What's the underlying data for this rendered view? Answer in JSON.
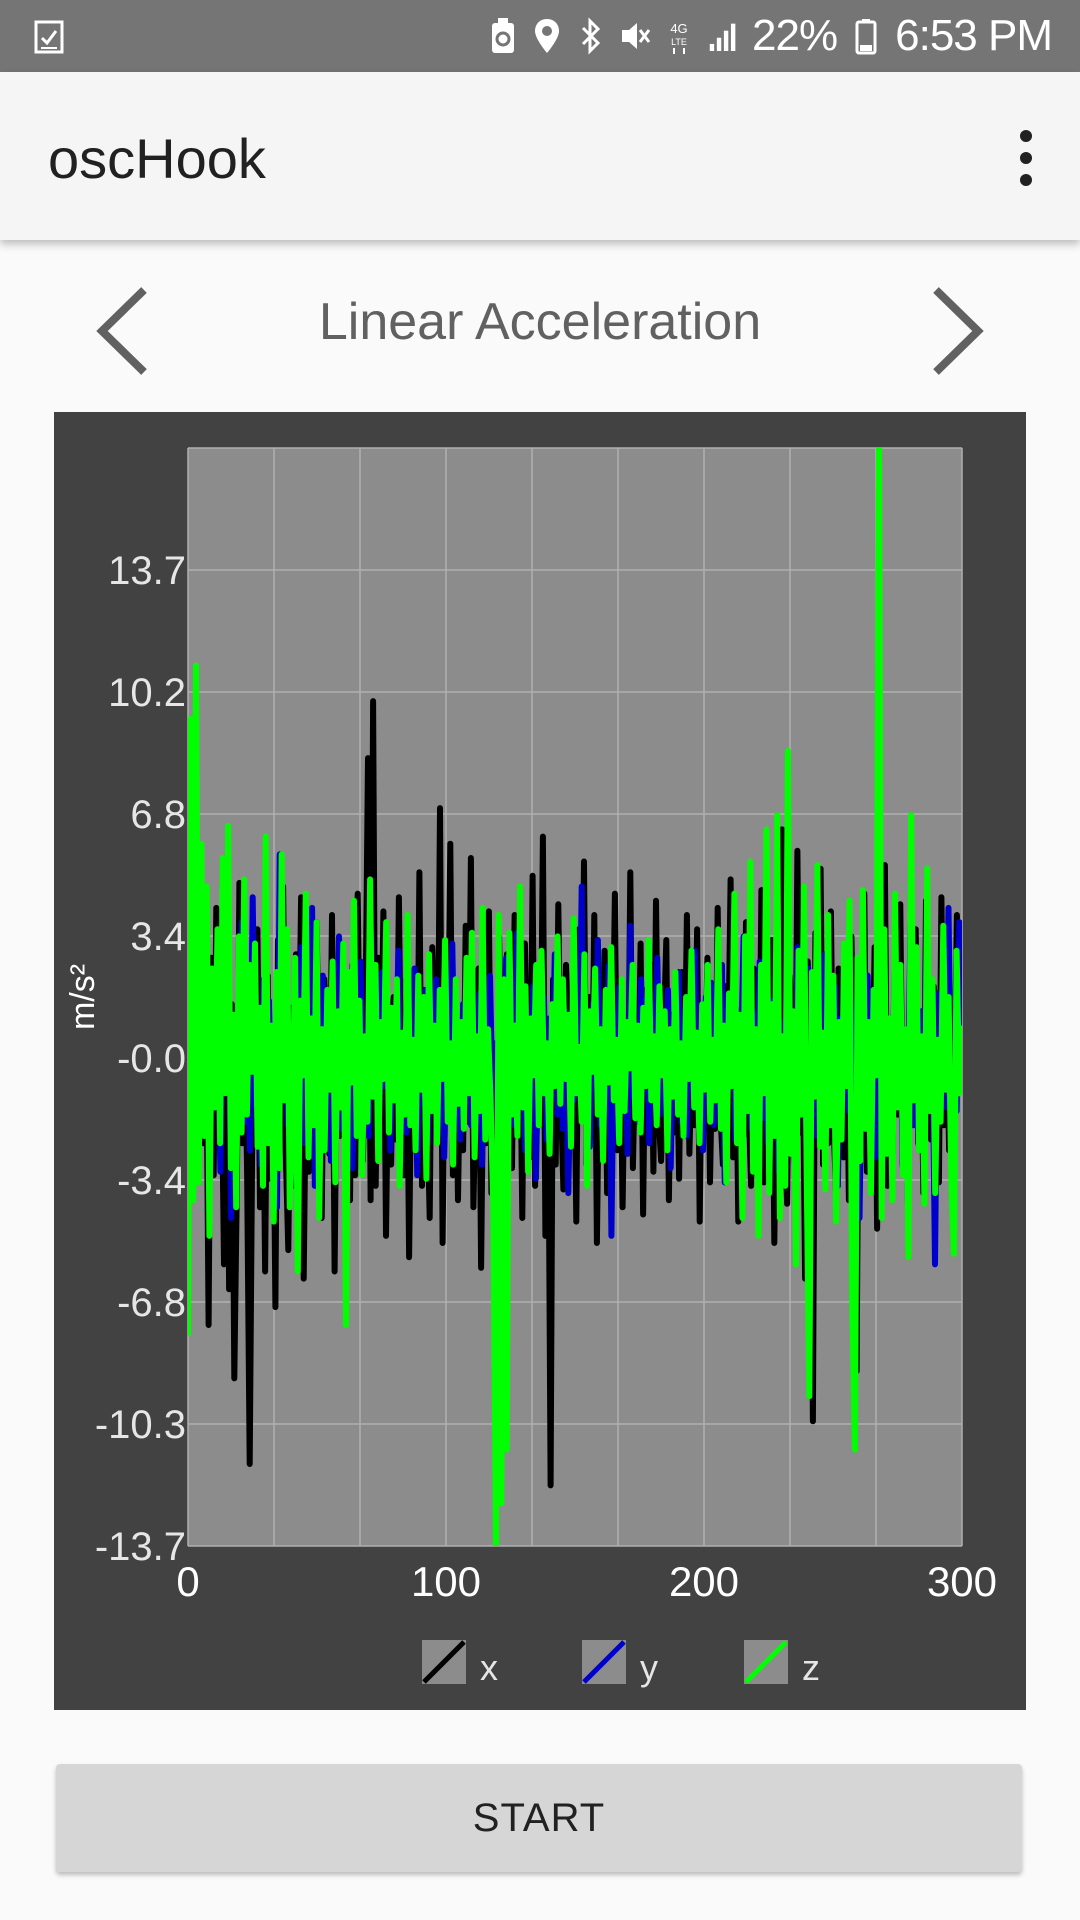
{
  "status_bar": {
    "battery": "22%",
    "time": "6:53 PM",
    "icons": [
      "task-check-icon",
      "recycle-icon",
      "location-icon",
      "bluetooth-icon",
      "mute-icon",
      "4g-lte-icon",
      "signal-icon",
      "battery-icon"
    ]
  },
  "app_bar": {
    "title": "oscHook",
    "menu_icon": "overflow-menu-icon"
  },
  "sensor_nav": {
    "title": "Linear Acceleration",
    "prev_icon": "chevron-left-icon",
    "next_icon": "chevron-right-icon"
  },
  "chart_data": {
    "type": "line",
    "ylabel": "m/s²",
    "xlabel": "",
    "xlim": [
      0,
      300
    ],
    "ylim": [
      -13.7,
      17.1
    ],
    "x_ticks": [
      "0",
      "100",
      "200",
      "300"
    ],
    "y_ticks": [
      "-13.7",
      "-10.3",
      "-6.8",
      "-3.4",
      "-0.0",
      "3.4",
      "6.8",
      "10.2",
      "13.7"
    ],
    "grid": true,
    "legend": "bottom",
    "series": [
      {
        "name": "x",
        "color": "#000000",
        "values": [
          -1.5,
          1.2,
          -2.1,
          3.0,
          -1.8,
          0.5,
          -2.4,
          1.6,
          -7.5,
          2.8,
          -3.3,
          4.2,
          -1.1,
          0.2,
          -5.8,
          3.6,
          -6.5,
          1.5,
          -9.0,
          -3.5,
          4.9,
          -2.4,
          1.0,
          -3.2,
          -11.4,
          -2.0,
          0.8,
          3.6,
          -4.2,
          1.5,
          -6.0,
          2.3,
          -3.4,
          0.6,
          -7.0,
          3.3,
          -1.5,
          4.8,
          -2.6,
          -5.4,
          1.4,
          -3.6,
          2.9,
          -0.8,
          4.5,
          -6.2,
          0.4,
          -3.2,
          1.8,
          -2.1,
          3.8,
          -1.0,
          -4.5,
          2.2,
          0.3,
          -2.7,
          4.0,
          -6.0,
          1.2,
          -2.2,
          3.2,
          -1.8,
          0.7,
          -4.0,
          2.6,
          -3.3,
          4.6,
          -1.5,
          -2.9,
          0.9,
          8.4,
          -4.0,
          10.0,
          -3.6,
          2.8,
          -1.2,
          4.1,
          -5.0,
          0.8,
          -3.0,
          1.7,
          -2.3,
          4.5,
          -1.8,
          -3.3,
          2.2,
          -5.6,
          1.0,
          0.4,
          -2.5,
          5.2,
          -3.6,
          1.9,
          -1.2,
          -4.5,
          3.1,
          0.5,
          -2.0,
          7.0,
          -5.2,
          2.1,
          -1.0,
          6.0,
          -3.3,
          1.3,
          -4.0,
          0.9,
          -2.6,
          3.7,
          -1.8,
          5.6,
          -4.2,
          -0.6,
          2.5,
          -5.9,
          1.1,
          -2.4,
          4.1,
          -3.8,
          0.2,
          -6.2,
          3.4,
          -1.4,
          -5.0,
          2.9,
          0.3,
          -3.1,
          4.0,
          -2.2,
          1.6,
          -4.5,
          3.2,
          -0.4,
          -2.8,
          5.1,
          -3.6,
          0.9,
          -1.6,
          6.2,
          -5.0,
          0.7,
          -12.0,
          2.2,
          -3.0,
          4.3,
          -1.1,
          -3.7,
          2.6,
          0.4,
          -2.3,
          1.3,
          -4.6,
          3.6,
          -0.9,
          5.5,
          -3.0,
          1.7,
          -2.2,
          4.0,
          -5.2,
          0.6,
          -1.4,
          3.0,
          -3.8,
          2.1,
          -0.6,
          4.6,
          -2.6,
          1.1,
          -4.2,
          0.8,
          -2.5,
          5.2,
          -3.1,
          0.4,
          -1.8,
          3.2,
          -4.4,
          1.9,
          -0.7,
          2.6,
          -3.2,
          4.4,
          -1.6,
          -2.9,
          0.6,
          3.3,
          -4.0,
          1.2,
          -2.1,
          0.9,
          -3.4,
          2.4,
          -1.3,
          4.0,
          -2.7,
          0.3,
          -1.9,
          3.6,
          -4.6,
          1.5,
          -0.8,
          2.8,
          -3.5,
          0.6,
          -2.0,
          4.2,
          -1.5,
          -3.0,
          2.0,
          -0.4,
          5.0,
          -2.8,
          1.4,
          -4.6,
          0.7,
          -2.2,
          3.8,
          -1.2,
          -3.6,
          2.5,
          0.8,
          -2.4,
          4.7,
          -3.5,
          1.1,
          -1.6,
          3.3,
          -5.2,
          0.5,
          -2.9,
          6.4,
          -1.8,
          -4.1,
          2.3,
          0.9,
          -3.0,
          5.8,
          -2.1,
          1.0,
          -6.2,
          2.7,
          -0.6,
          -10.2,
          3.5,
          -1.4,
          5.3,
          -3.0,
          0.7,
          -2.4,
          4.1,
          -1.7,
          -3.8,
          2.5,
          0.5,
          -2.8,
          1.9,
          -4.0,
          3.4,
          -0.9,
          -8.8,
          2.2,
          -1.5,
          4.6,
          -3.2,
          0.8,
          -2.0,
          3.1,
          -4.8,
          1.4,
          -1.1,
          5.4,
          -3.6,
          0.6,
          -2.7,
          2.9,
          -1.6,
          4.3,
          -3.1,
          0.3,
          -4.2,
          1.7,
          -0.5,
          3.6,
          -2.4,
          1.1,
          -3.8,
          4.4,
          -1.2,
          -2.3,
          2.0,
          0.6,
          -3.5,
          4.5,
          -1.9,
          1.3,
          -2.6,
          0.2,
          -1.1,
          4.0,
          -0.8,
          2.2
        ]
      },
      {
        "name": "y",
        "color": "#0000cc",
        "values": [
          -0.8,
          0.6,
          -1.2,
          1.8,
          -1.0,
          0.3,
          -1.6,
          1.1,
          -2.5,
          2.1,
          -1.4,
          0.9,
          -3.2,
          1.5,
          -0.6,
          2.4,
          -4.5,
          1.2,
          -2.0,
          0.5,
          3.8,
          -1.8,
          0.7,
          -2.6,
          4.5,
          -1.3,
          0.4,
          -3.0,
          2.2,
          -0.9,
          1.6,
          -2.2,
          0.8,
          -4.2,
          5.7,
          -1.0,
          2.6,
          -1.9,
          0.5,
          -3.4,
          1.9,
          -0.7,
          3.1,
          -2.4,
          0.9,
          -1.5,
          4.2,
          -3.6,
          1.2,
          -0.4,
          2.3,
          -1.8,
          0.6,
          -2.9,
          1.4,
          -0.3,
          3.4,
          -2.0,
          0.8,
          -1.2,
          2.0,
          -3.1,
          1.1,
          -0.5,
          2.7,
          -1.6,
          0.4,
          -2.2,
          3.5,
          -1.0,
          0.2,
          -1.7,
          2.4,
          -0.8,
          1.6,
          -2.6,
          0.9,
          -0.3,
          3.0,
          -1.5,
          0.7,
          -2.1,
          1.3,
          -0.6,
          2.5,
          -3.3,
          0.5,
          -1.0,
          1.9,
          -2.4,
          0.8,
          -0.4,
          2.2,
          -1.7,
          1.0,
          -2.8,
          0.6,
          -0.9,
          3.2,
          -1.4,
          0.3,
          -2.3,
          1.5,
          -0.7,
          2.6,
          -1.9,
          0.9,
          -0.2,
          1.8,
          -3.0,
          1.2,
          -0.6,
          2.3,
          -1.5,
          0.4,
          -2.2,
          1.0,
          -0.8,
          2.8,
          -1.2,
          0.6,
          -1.9,
          3.5,
          -0.5,
          1.4,
          -2.6,
          0.8,
          -1.1,
          2.0,
          -3.4,
          0.9,
          -0.4,
          1.7,
          -2.3,
          1.1,
          -0.7,
          2.9,
          -1.6,
          0.5,
          -2.0,
          1.3,
          -3.8,
          0.6,
          -1.2,
          2.4,
          -0.9,
          4.8,
          -1.7,
          0.7,
          -2.5,
          1.5,
          -0.3,
          3.3,
          -1.9,
          0.4,
          -1.0,
          2.6,
          -5.0,
          1.2,
          -0.6,
          2.0,
          -1.4,
          0.8,
          -2.7,
          3.7,
          -1.1,
          0.3,
          -1.8,
          2.2,
          -0.7,
          1.3,
          -2.4,
          0.9,
          -0.5,
          2.8,
          -1.6,
          0.6,
          -1.2,
          1.9,
          -3.1,
          1.0,
          -0.4,
          2.4,
          -1.8,
          0.7,
          -2.2,
          1.5,
          -0.8,
          3.0,
          -1.3,
          0.5,
          -2.6,
          1.7,
          -0.6,
          2.1,
          -1.9,
          0.4,
          -1.0,
          2.6,
          -3.5,
          1.3,
          -0.7,
          1.8,
          -2.3,
          0.9,
          -0.3,
          3.4,
          -1.5,
          0.6,
          -2.0,
          1.2,
          -0.9,
          2.7,
          -1.7,
          0.3,
          -2.4,
          1.6,
          -0.5,
          2.2,
          -3.2,
          1.0,
          -0.8,
          1.9,
          -1.4,
          0.7,
          -2.6,
          3.1,
          -1.1,
          0.4,
          -1.9,
          2.5,
          -0.6,
          1.4,
          -2.2,
          0.8,
          -0.4,
          2.9,
          -1.8,
          0.5,
          -1.3,
          2.0,
          -3.6,
          1.1,
          -0.7,
          2.4,
          -1.5,
          0.9,
          -2.1,
          1.6,
          -4.5,
          0.6,
          -1.0,
          2.3,
          -1.7,
          0.4,
          -2.8,
          3.3,
          -0.9,
          1.2,
          -1.6,
          0.7,
          -2.3,
          2.7,
          -0.5,
          1.5,
          -3.0,
          0.8,
          -1.2,
          4.5,
          -1.9,
          0.6,
          -2.5,
          1.3,
          -0.4,
          3.6,
          -1.1,
          0.9,
          -5.8,
          1.8,
          -0.8,
          2.6,
          -1.4,
          4.2,
          -2.0,
          0.7,
          -1.5,
          3.8,
          -0.6
        ]
      },
      {
        "name": "z",
        "color": "#00ff00",
        "values": [
          -7.8,
          9.5,
          -4.0,
          11.0,
          -3.5,
          6.0,
          -2.2,
          4.8,
          -5.0,
          2.5,
          -1.4,
          3.6,
          -2.4,
          5.6,
          -1.0,
          6.5,
          -3.1,
          1.2,
          -4.2,
          3.4,
          -2.1,
          5.0,
          -1.6,
          2.6,
          -0.4,
          3.2,
          -2.5,
          1.4,
          -3.6,
          6.2,
          -2.4,
          0.9,
          -4.6,
          2.4,
          -3.1,
          5.7,
          -1.2,
          3.6,
          -4.2,
          -2.0,
          2.8,
          -6.0,
          1.6,
          -0.5,
          4.6,
          -2.8,
          1.1,
          -1.9,
          3.8,
          -4.5,
          0.8,
          -2.6,
          1.9,
          -0.9,
          2.7,
          -3.5,
          1.3,
          -1.4,
          3.2,
          -7.5,
          2.4,
          -0.7,
          4.4,
          -2.2,
          1.6,
          -3.3,
          0.6,
          -1.8,
          5.0,
          -1.1,
          2.6,
          -2.9,
          1.0,
          -0.6,
          3.8,
          -2.1,
          1.4,
          -1.2,
          2.2,
          -3.6,
          0.7,
          -1.6,
          4.0,
          -1.9,
          0.5,
          -2.6,
          2.3,
          -0.9,
          1.7,
          -3.4,
          2.9,
          -1.5,
          0.9,
          -2.4,
          1.9,
          -0.6,
          3.3,
          -1.8,
          0.4,
          -3.0,
          2.2,
          -1.3,
          1.0,
          -2.0,
          2.8,
          -1.0,
          3.5,
          -2.8,
          0.6,
          -1.5,
          4.2,
          -2.3,
          0.8,
          -1.2,
          -4.2,
          -13.7,
          4.0,
          -12.5,
          2.2,
          -11.0,
          3.5,
          -1.6,
          0.9,
          -2.2,
          4.8,
          -1.4,
          2.0,
          -3.2,
          1.1,
          -0.5,
          2.6,
          -1.9,
          3.0,
          -1.0,
          0.4,
          -2.7,
          1.5,
          -0.8,
          3.4,
          -1.3,
          2.2,
          -0.6,
          1.2,
          -2.5,
          3.9,
          -1.0,
          0.3,
          -1.8,
          2.9,
          -3.6,
          1.3,
          -0.4,
          2.5,
          -1.6,
          0.8,
          -2.9,
          1.9,
          -0.7,
          3.1,
          -1.2,
          0.5,
          -2.4,
          2.2,
          -1.5,
          1.0,
          -0.3,
          2.6,
          -1.7,
          0.9,
          -2.1,
          1.4,
          -0.8,
          3.3,
          -1.2,
          0.6,
          -1.9,
          2.0,
          -0.5,
          1.3,
          -2.6,
          0.8,
          -1.1,
          2.4,
          -1.6,
          0.4,
          -2.2,
          1.7,
          -0.6,
          3.0,
          -1.4,
          0.7,
          -2.4,
          1.5,
          -0.9,
          2.6,
          -1.8,
          0.5,
          -1.2,
          3.6,
          -2.0,
          0.9,
          -3.5,
          1.8,
          -0.8,
          4.6,
          -2.4,
          1.2,
          -4.5,
          3.4,
          -1.5,
          5.5,
          -3.2,
          0.8,
          -5.0,
          2.6,
          -1.0,
          6.4,
          -3.8,
          1.5,
          -2.2,
          6.8,
          -4.5,
          0.6,
          -3.6,
          8.6,
          -2.7,
          1.3,
          -5.8,
          3.0,
          -1.6,
          4.8,
          -3.3,
          -9.5,
          2.4,
          -1.1,
          5.4,
          -2.5,
          0.7,
          -3.7,
          4.0,
          -1.9,
          2.3,
          -4.6,
          1.0,
          -2.3,
          3.2,
          -0.8,
          4.4,
          -6.8,
          -11.0,
          2.8,
          -2.9,
          4.7,
          -2.0,
          1.0,
          -3.8,
          1.9,
          -0.5,
          17.1,
          -4.5,
          3.6,
          -2.7,
          1.1,
          -4.0,
          4.6,
          -1.4,
          2.6,
          -3.3,
          0.8,
          -5.6,
          6.8,
          -1.2,
          3.1,
          -2.6,
          0.6,
          -4.1,
          5.3,
          -1.5,
          2.2,
          -3.8,
          0.5,
          -1.8,
          3.7,
          -0.9,
          1.7,
          -3.5,
          -5.5,
          3.0,
          -1.0,
          0.9
        ]
      }
    ]
  },
  "start_button": {
    "label": "START"
  }
}
